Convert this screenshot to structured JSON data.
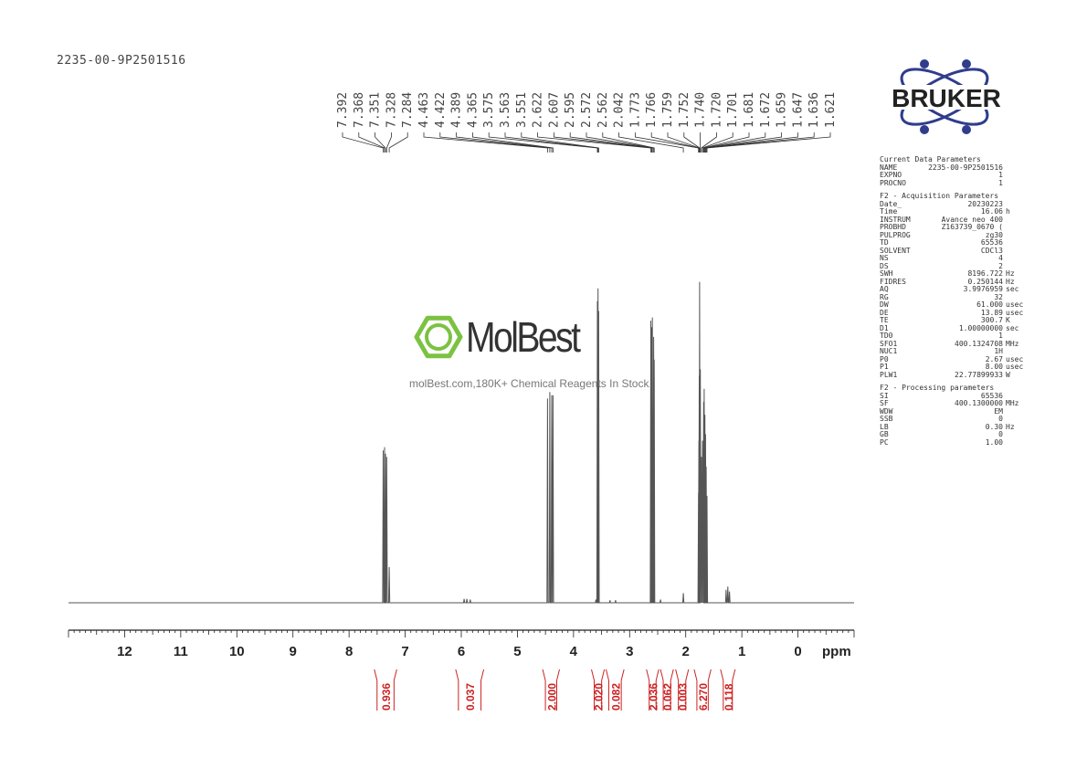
{
  "sample_id": "2235-00-9P2501516",
  "brand": {
    "bruker": "BRUKER",
    "molbest_name": "MolBest",
    "molbest_tagline": "molBest.com,180K+ Chemical Reagents In Stock.",
    "logo_color": "#2f3d8c",
    "molbest_green": "#7cc242"
  },
  "params": [
    {
      "title": "Current Data Parameters",
      "rows": [
        {
          "k": "NAME",
          "v": "2235-00-9P2501516",
          "u": ""
        },
        {
          "k": "EXPNO",
          "v": "1",
          "u": ""
        },
        {
          "k": "PROCNO",
          "v": "1",
          "u": ""
        }
      ]
    },
    {
      "title": "F2 - Acquisition Parameters",
      "rows": [
        {
          "k": "Date_",
          "v": "20230223",
          "u": ""
        },
        {
          "k": "Time",
          "v": "16.06",
          "u": "h"
        },
        {
          "k": "INSTRUM",
          "v": "Avance neo 400",
          "u": ""
        },
        {
          "k": "PROBHD",
          "v": "Z163739_0670 (",
          "u": ""
        },
        {
          "k": "PULPROG",
          "v": "zg30",
          "u": ""
        },
        {
          "k": "TD",
          "v": "65536",
          "u": ""
        },
        {
          "k": "SOLVENT",
          "v": "CDCl3",
          "u": ""
        },
        {
          "k": "NS",
          "v": "4",
          "u": ""
        },
        {
          "k": "DS",
          "v": "2",
          "u": ""
        },
        {
          "k": "SWH",
          "v": "8196.722",
          "u": "Hz"
        },
        {
          "k": "FIDRES",
          "v": "0.250144",
          "u": "Hz"
        },
        {
          "k": "AQ",
          "v": "3.9976959",
          "u": "sec"
        },
        {
          "k": "RG",
          "v": "32",
          "u": ""
        },
        {
          "k": "DW",
          "v": "61.000",
          "u": "usec"
        },
        {
          "k": "DE",
          "v": "13.89",
          "u": "usec"
        },
        {
          "k": "TE",
          "v": "300.7",
          "u": "K"
        },
        {
          "k": "D1",
          "v": "1.00000000",
          "u": "sec"
        },
        {
          "k": "TD0",
          "v": "1",
          "u": ""
        },
        {
          "k": "SFO1",
          "v": "400.1324708",
          "u": "MHz"
        },
        {
          "k": "NUC1",
          "v": "1H",
          "u": ""
        },
        {
          "k": "P0",
          "v": "2.67",
          "u": "usec"
        },
        {
          "k": "P1",
          "v": "8.00",
          "u": "usec"
        },
        {
          "k": "PLW1",
          "v": "22.77899933",
          "u": "W"
        }
      ]
    },
    {
      "title": "F2 - Processing parameters",
      "rows": [
        {
          "k": "SI",
          "v": "65536",
          "u": ""
        },
        {
          "k": "SF",
          "v": "400.1300000",
          "u": "MHz"
        },
        {
          "k": "WDW",
          "v": "EM",
          "u": ""
        },
        {
          "k": "SSB",
          "v": "0",
          "u": ""
        },
        {
          "k": "LB",
          "v": "0.30",
          "u": "Hz"
        },
        {
          "k": "GB",
          "v": "0",
          "u": ""
        },
        {
          "k": "PC",
          "v": "1.00",
          "u": ""
        }
      ]
    }
  ],
  "chart_data": {
    "type": "line",
    "xlabel": "ppm",
    "xlim": [
      13,
      -1
    ],
    "reversed_x": true,
    "x_ticks": [
      12,
      11,
      10,
      9,
      8,
      7,
      6,
      5,
      4,
      3,
      2,
      1,
      0
    ],
    "line_color": "#555555",
    "integral_color": "#cc2222",
    "peak_labels": [
      "7.392",
      "7.368",
      "7.351",
      "7.328",
      "7.284",
      "4.463",
      "4.422",
      "4.389",
      "4.365",
      "3.575",
      "3.563",
      "3.551",
      "2.622",
      "2.607",
      "2.595",
      "2.572",
      "2.562",
      "2.042",
      "1.773",
      "1.766",
      "1.759",
      "1.752",
      "1.740",
      "1.720",
      "1.701",
      "1.681",
      "1.672",
      "1.659",
      "1.647",
      "1.636",
      "1.621"
    ],
    "peaks": [
      {
        "ppm": 7.392,
        "h": 0.47
      },
      {
        "ppm": 7.368,
        "h": 0.48
      },
      {
        "ppm": 7.351,
        "h": 0.46
      },
      {
        "ppm": 7.328,
        "h": 0.45
      },
      {
        "ppm": 7.284,
        "h": 0.11
      },
      {
        "ppm": 5.95,
        "h": 0.012
      },
      {
        "ppm": 5.9,
        "h": 0.012
      },
      {
        "ppm": 5.84,
        "h": 0.01
      },
      {
        "ppm": 4.463,
        "h": 0.63
      },
      {
        "ppm": 4.422,
        "h": 0.65
      },
      {
        "ppm": 4.389,
        "h": 0.64
      },
      {
        "ppm": 4.365,
        "h": 0.64
      },
      {
        "ppm": 3.6,
        "h": 0.01
      },
      {
        "ppm": 3.575,
        "h": 0.93
      },
      {
        "ppm": 3.563,
        "h": 0.97
      },
      {
        "ppm": 3.551,
        "h": 0.9
      },
      {
        "ppm": 3.35,
        "h": 0.008
      },
      {
        "ppm": 3.25,
        "h": 0.008
      },
      {
        "ppm": 2.622,
        "h": 0.87
      },
      {
        "ppm": 2.607,
        "h": 0.85
      },
      {
        "ppm": 2.595,
        "h": 0.88
      },
      {
        "ppm": 2.572,
        "h": 0.82
      },
      {
        "ppm": 2.562,
        "h": 0.75
      },
      {
        "ppm": 2.45,
        "h": 0.01
      },
      {
        "ppm": 2.042,
        "h": 0.03
      },
      {
        "ppm": 1.773,
        "h": 0.34
      },
      {
        "ppm": 1.766,
        "h": 0.5
      },
      {
        "ppm": 1.759,
        "h": 0.7
      },
      {
        "ppm": 1.752,
        "h": 0.99
      },
      {
        "ppm": 1.74,
        "h": 0.72
      },
      {
        "ppm": 1.72,
        "h": 0.45
      },
      {
        "ppm": 1.701,
        "h": 0.5
      },
      {
        "ppm": 1.681,
        "h": 0.62
      },
      {
        "ppm": 1.672,
        "h": 0.66
      },
      {
        "ppm": 1.659,
        "h": 0.58
      },
      {
        "ppm": 1.647,
        "h": 0.52
      },
      {
        "ppm": 1.636,
        "h": 0.42
      },
      {
        "ppm": 1.621,
        "h": 0.33
      },
      {
        "ppm": 1.28,
        "h": 0.04
      },
      {
        "ppm": 1.25,
        "h": 0.05
      },
      {
        "ppm": 1.22,
        "h": 0.035
      }
    ],
    "integrals": [
      {
        "from": 7.55,
        "to": 7.15,
        "value": "0.936"
      },
      {
        "from": 6.1,
        "to": 5.6,
        "value": "0.037"
      },
      {
        "from": 4.55,
        "to": 4.25,
        "value": "2.000"
      },
      {
        "from": 3.68,
        "to": 3.45,
        "value": "2.020"
      },
      {
        "from": 3.42,
        "to": 3.1,
        "value": "0.082"
      },
      {
        "from": 2.7,
        "to": 2.48,
        "value": "2.036"
      },
      {
        "from": 2.45,
        "to": 2.22,
        "value": "0.062"
      },
      {
        "from": 2.18,
        "to": 1.95,
        "value": "0.003"
      },
      {
        "from": 1.85,
        "to": 1.55,
        "value": "6.270"
      },
      {
        "from": 1.38,
        "to": 1.12,
        "value": "0.118"
      }
    ]
  }
}
